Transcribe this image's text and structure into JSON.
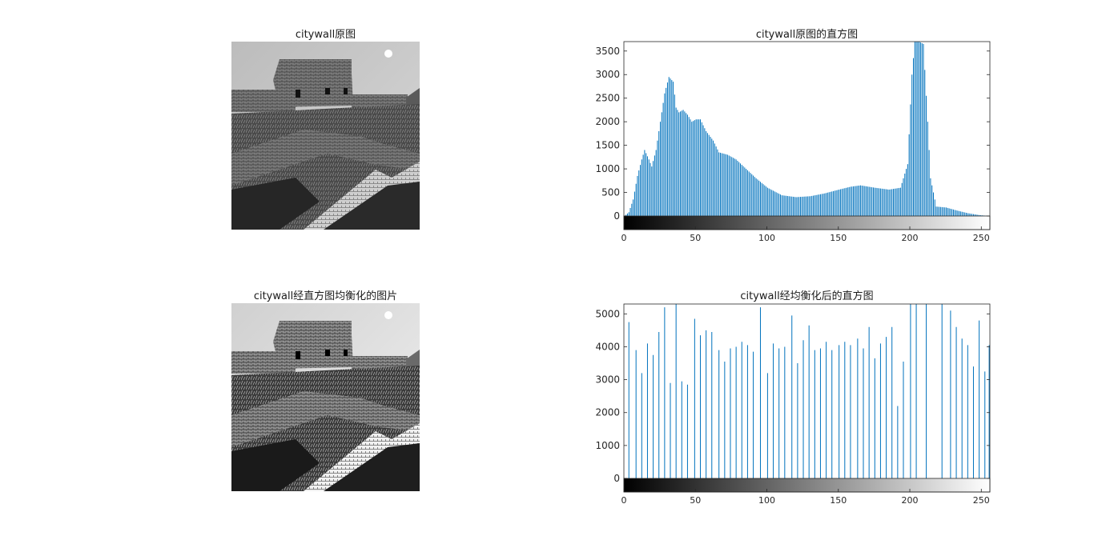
{
  "panels": {
    "img1_title": "citywall原图",
    "img2_title": "citywall经直方图均衡化的图片",
    "hist1_title": "citywall原图的直方图",
    "hist2_title": "citywall经均衡化后的直方图"
  },
  "colors": {
    "bars": "#0072bd",
    "axis": "#262626",
    "photo_sky_1": "#cfcfcf",
    "photo_sky_2": "#e7e7e7"
  },
  "chart_data": [
    {
      "type": "bar",
      "title": "citywall原图的直方图",
      "xlim": [
        0,
        255
      ],
      "ylim": [
        0,
        3700
      ],
      "xticks": [
        0,
        50,
        100,
        150,
        200,
        250
      ],
      "yticks": [
        0,
        500,
        1000,
        1500,
        2000,
        2500,
        3000,
        3500
      ],
      "colorbar": "grayscale 0 to 255",
      "description": "256-bin intensity histogram; values estimated at gray-level control points",
      "control_points": [
        [
          0,
          0
        ],
        [
          3,
          80
        ],
        [
          6,
          350
        ],
        [
          9,
          850
        ],
        [
          12,
          1200
        ],
        [
          14,
          1400
        ],
        [
          17,
          1200
        ],
        [
          19,
          1050
        ],
        [
          22,
          1400
        ],
        [
          25,
          2000
        ],
        [
          28,
          2600
        ],
        [
          31,
          2950
        ],
        [
          34,
          2850
        ],
        [
          36,
          2300
        ],
        [
          38,
          2200
        ],
        [
          41,
          2250
        ],
        [
          44,
          2150
        ],
        [
          47,
          2000
        ],
        [
          50,
          2050
        ],
        [
          53,
          2050
        ],
        [
          57,
          1800
        ],
        [
          62,
          1600
        ],
        [
          66,
          1350
        ],
        [
          72,
          1300
        ],
        [
          78,
          1200
        ],
        [
          85,
          1000
        ],
        [
          92,
          800
        ],
        [
          100,
          600
        ],
        [
          110,
          440
        ],
        [
          120,
          400
        ],
        [
          130,
          420
        ],
        [
          140,
          480
        ],
        [
          150,
          560
        ],
        [
          158,
          620
        ],
        [
          165,
          650
        ],
        [
          175,
          600
        ],
        [
          185,
          560
        ],
        [
          193,
          600
        ],
        [
          198,
          1100
        ],
        [
          201,
          3000
        ],
        [
          203,
          3700
        ],
        [
          206,
          3700
        ],
        [
          209,
          3650
        ],
        [
          212,
          2000
        ],
        [
          214,
          800
        ],
        [
          218,
          200
        ],
        [
          225,
          180
        ],
        [
          232,
          120
        ],
        [
          240,
          60
        ],
        [
          248,
          20
        ],
        [
          255,
          0
        ]
      ]
    },
    {
      "type": "bar",
      "title": "citywall经均衡化后的直方图",
      "xlim": [
        0,
        255
      ],
      "ylim": [
        0,
        5300
      ],
      "xticks": [
        0,
        50,
        100,
        150,
        200,
        250
      ],
      "yticks": [
        0,
        1000,
        2000,
        3000,
        4000,
        5000
      ],
      "colorbar": "grayscale 0 to 255",
      "bars": [
        [
          3,
          4750
        ],
        [
          8,
          3900
        ],
        [
          12,
          3200
        ],
        [
          16,
          4100
        ],
        [
          20,
          3750
        ],
        [
          24,
          4450
        ],
        [
          28,
          5200
        ],
        [
          32,
          2900
        ],
        [
          36,
          5300
        ],
        [
          40,
          2950
        ],
        [
          44,
          2850
        ],
        [
          49,
          4850
        ],
        [
          53,
          4350
        ],
        [
          57,
          4500
        ],
        [
          61,
          4450
        ],
        [
          66,
          3900
        ],
        [
          70,
          3550
        ],
        [
          74,
          3950
        ],
        [
          78,
          4000
        ],
        [
          82,
          4150
        ],
        [
          86,
          4050
        ],
        [
          90,
          3850
        ],
        [
          95,
          5200
        ],
        [
          100,
          3200
        ],
        [
          104,
          4100
        ],
        [
          108,
          3950
        ],
        [
          112,
          4000
        ],
        [
          117,
          4950
        ],
        [
          121,
          3500
        ],
        [
          125,
          4200
        ],
        [
          129,
          4650
        ],
        [
          133,
          3900
        ],
        [
          137,
          3950
        ],
        [
          141,
          4150
        ],
        [
          145,
          3900
        ],
        [
          150,
          4050
        ],
        [
          154,
          4150
        ],
        [
          158,
          4050
        ],
        [
          163,
          4250
        ],
        [
          167,
          3950
        ],
        [
          171,
          4600
        ],
        [
          175,
          3650
        ],
        [
          179,
          4100
        ],
        [
          183,
          4300
        ],
        [
          187,
          4600
        ],
        [
          191,
          2200
        ],
        [
          195,
          3550
        ],
        [
          200,
          5300
        ],
        [
          204,
          5300
        ],
        [
          211,
          5300
        ],
        [
          222,
          5300
        ],
        [
          228,
          5100
        ],
        [
          232,
          4600
        ],
        [
          236,
          4250
        ],
        [
          240,
          4050
        ],
        [
          244,
          3400
        ],
        [
          248,
          4800
        ],
        [
          252,
          3250
        ],
        [
          255,
          4050
        ]
      ]
    }
  ]
}
